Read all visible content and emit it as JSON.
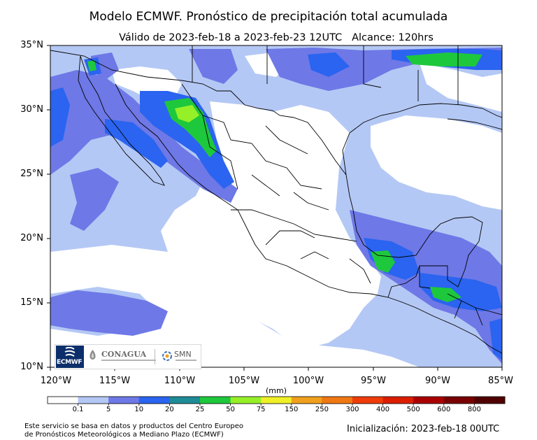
{
  "title": "Modelo ECMWF. Pronóstico de precipitación total acumulada",
  "subtitle": "Válido de 2023-feb-18 a 2023-feb-23 12UTC   Alcance: 120hrs",
  "lat_labels": [
    "35°N",
    "30°N",
    "25°N",
    "20°N",
    "15°N",
    "10°N"
  ],
  "lon_labels": [
    "120°W",
    "115°W",
    "110°W",
    "105°W",
    "100°W",
    "95°W",
    "90°W",
    "85°W"
  ],
  "colorbar": {
    "unit": "(mm)",
    "levels": [
      "0.1",
      "5",
      "10",
      "20",
      "25",
      "50",
      "75",
      "150",
      "250",
      "300",
      "400",
      "500",
      "600",
      "800"
    ],
    "colors": [
      "#ffffff",
      "#b4c8f5",
      "#6e78e6",
      "#2a64f0",
      "#1e8c96",
      "#1ec83c",
      "#96f028",
      "#f0f028",
      "#f0a01e",
      "#f07814",
      "#f03c0a",
      "#dc1e00",
      "#aa0000",
      "#780000",
      "#500000"
    ]
  },
  "logos": {
    "ecmwf": "ECMWF",
    "conagua": "CONAGUA",
    "smn": "SMN"
  },
  "footer": {
    "source_line1": "Este servicio se basa en datos y productos del Centro Europeo",
    "source_line2": "de Pronósticos Meteorológicos a Mediano Plazo (ECMWF)",
    "init": "Inicialización: 2023-feb-18 00UTC"
  },
  "map_colors": {
    "ocean_light": "#b4c8f5",
    "moderate": "#6e78e6",
    "heavy": "#2a64f0",
    "green": "#1ec83c",
    "lime": "#96f028",
    "land_dry": "#ffffff",
    "border": "#000000"
  }
}
